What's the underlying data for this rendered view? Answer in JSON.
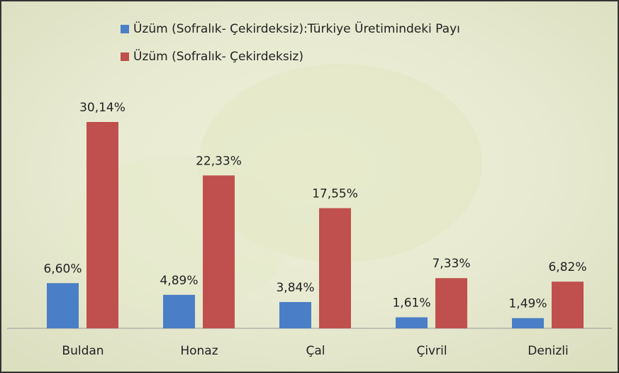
{
  "chart_data": {
    "type": "bar",
    "categories": [
      "Buldan",
      "Honaz",
      "Çal",
      "Çivril",
      "Denizli"
    ],
    "series": [
      {
        "name": "Üzüm (Sofralık- Çekirdeksiz):Türkiye Üretimindeki Payı",
        "color": "#4a7ec6",
        "values": [
          6.6,
          4.89,
          3.84,
          1.61,
          1.49
        ],
        "value_labels": [
          "6,60%",
          "4,89%",
          "3,84%",
          "1,61%",
          "1,49%"
        ]
      },
      {
        "name": "Üzüm (Sofralık- Çekirdeksiz)",
        "color": "#c0504d",
        "values": [
          30.14,
          22.33,
          17.55,
          7.33,
          6.82
        ],
        "value_labels": [
          "30,14%",
          "22,33%",
          "17,55%",
          "7,33%",
          "6,82%"
        ]
      }
    ],
    "legend": "top"
  }
}
